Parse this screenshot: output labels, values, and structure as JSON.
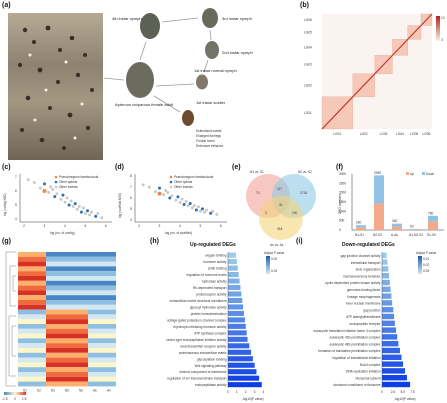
{
  "panels": {
    "a": "(a)",
    "b": "(b)",
    "c": "(c)",
    "d": "(d)",
    "e": "(e)",
    "f": "(f)",
    "g": "(g)",
    "h": "(h)",
    "i": "(i)"
  },
  "lifecycle": {
    "adult": "Apterous viviparous female adult",
    "nymph4": "4th instar nymph",
    "nymph3": "3rd instar nymph",
    "nymph2": "2nd instar nymph",
    "nymph1n": "1st instar normal nymph",
    "nymph1s": "1st instar soldier",
    "traits": [
      "Sclerotized cuticle",
      "Enlarged forelegs",
      "Frontal horns",
      "Defensive behavior"
    ]
  },
  "hic": {
    "chromosomes": [
      "LG01",
      "LG02",
      "LG03",
      "LG04",
      "LG05",
      "LG06"
    ],
    "legend_max": "10",
    "legend_min": "0"
  },
  "scatter_c": {
    "ylabel": "log (contig N50)",
    "xlabel": "log (no. of contig)",
    "legend": [
      "Pseudoregium bambucicola",
      "Other aphids",
      "Other insects"
    ],
    "xticks": [
      "2",
      "3",
      "4",
      "5",
      "6"
    ],
    "yticks": [
      "4",
      "5",
      "6",
      "7"
    ]
  },
  "scatter_d": {
    "ylabel": "log (scaffold N50)",
    "xlabel": "log (no. of scaffold)",
    "legend": [
      "Pseudoregium bambucicola",
      "Other aphids",
      "Other insects"
    ],
    "xticks": [
      "2",
      "3",
      "4",
      "5",
      "6"
    ],
    "yticks": [
      "4",
      "5",
      "6",
      "7",
      "8"
    ]
  },
  "venn": {
    "sets": [
      "N1 vs. S1",
      "N2 vs. S2",
      "An vs. As"
    ],
    "values": [
      "70",
      "117",
      "2716",
      "31",
      "3",
      "100",
      "318"
    ]
  },
  "chart_data": {
    "type": "bar",
    "title": "",
    "ylabel": "DEG numbers",
    "legend": [
      "Up",
      "Down"
    ],
    "categories": [
      "N1-S1",
      "N2-S2",
      "A-As",
      "N1-N2-S1",
      "S1-S2"
    ],
    "series": [
      {
        "name": "Up",
        "values": [
          120,
          1500,
          160,
          25,
          300
        ]
      },
      {
        "name": "Down",
        "values": [
          140,
          1430,
          180,
          28,
          460
        ]
      }
    ],
    "labels": [
      "260",
      "2930",
      "340",
      "53",
      "760"
    ],
    "ylim": [
      0,
      3000
    ],
    "yticks": [
      "0",
      "500",
      "1000",
      "1500",
      "2000",
      "2500",
      "3000"
    ]
  },
  "heatmap": {
    "columns": [
      "S1",
      "S2",
      "N1",
      "N2",
      "N2",
      "As",
      "An"
    ],
    "scale": [
      "-1.5",
      "0",
      "1.5"
    ]
  },
  "go_up": {
    "title": "Up-regulated DEGs",
    "xlabel": "-log10(P value)",
    "legend_title": "Adjust P value",
    "legend_ticks": [
      "0.02",
      "0.04"
    ],
    "xticks": [
      "0",
      "1",
      "2",
      "3",
      "4"
    ],
    "terms": [
      "oxygen binding",
      "hormone activity",
      "chitin binding",
      "regulation of hormone levels",
      "hydrolase activity",
      "Rh-dependent transport",
      "photoreceptor activity",
      "extracellular matrix structural constituent",
      "glycosyl hydrolase activity",
      "protein homodimerization",
      "voltage-gated potassium channel complex",
      "thyrotropin-releasing hormone activity",
      "ATP synthase complex",
      "serine-type endopeptidase inhibitor activity",
      "neurotransmitter receptor activity",
      "proteinaceous extracellular matrix",
      "glycosylation binding",
      "Wnt signaling pathway",
      "intrinsic component of membrane",
      "regulation of ion transmembrane transport",
      "endopeptidase activity"
    ],
    "values": [
      0.9,
      1.0,
      1.1,
      1.2,
      1.3,
      1.4,
      1.5,
      1.6,
      1.7,
      1.8,
      1.9,
      2.0,
      2.1,
      2.2,
      2.4,
      2.6,
      2.8,
      3.0,
      3.2,
      3.5,
      3.8
    ]
  },
  "go_down": {
    "title": "Down-regulated DEGs",
    "xlabel": "-log10(P value)",
    "legend_title": "Adjust P value",
    "legend_ticks": [
      "0.01",
      "0.02",
      "0.03"
    ],
    "xticks": [
      "0",
      "2.5",
      "5.0",
      "7.5"
    ],
    "terms": [
      "gap junction channel activity",
      "intercellular transport",
      "ionic organization",
      "mechanosensory behavior",
      "cyclin-dependent protein kinase activity",
      "genomics binding factor",
      "lineage morphogenesis",
      "inner nuclear membrane",
      "gap junction",
      "ATP adenylyltransferase",
      "neuropeptide receptor",
      "eukaryotic translation initiation factor 3 complex",
      "eukaryotic 43S preinitiation complex",
      "eukaryotic 48S preinitiation complex",
      "formation of translation preinitiation complex",
      "regulation of translational initiation",
      "NuA4 complex",
      "DNA replication initiation",
      "ribosomal subunit",
      "structural constituent of ribosome"
    ],
    "values": [
      1.2,
      1.4,
      1.6,
      1.8,
      2.0,
      2.2,
      2.4,
      2.6,
      2.9,
      3.1,
      3.3,
      3.6,
      3.9,
      4.2,
      4.6,
      5.0,
      5.4,
      5.9,
      6.4,
      7.2
    ]
  }
}
